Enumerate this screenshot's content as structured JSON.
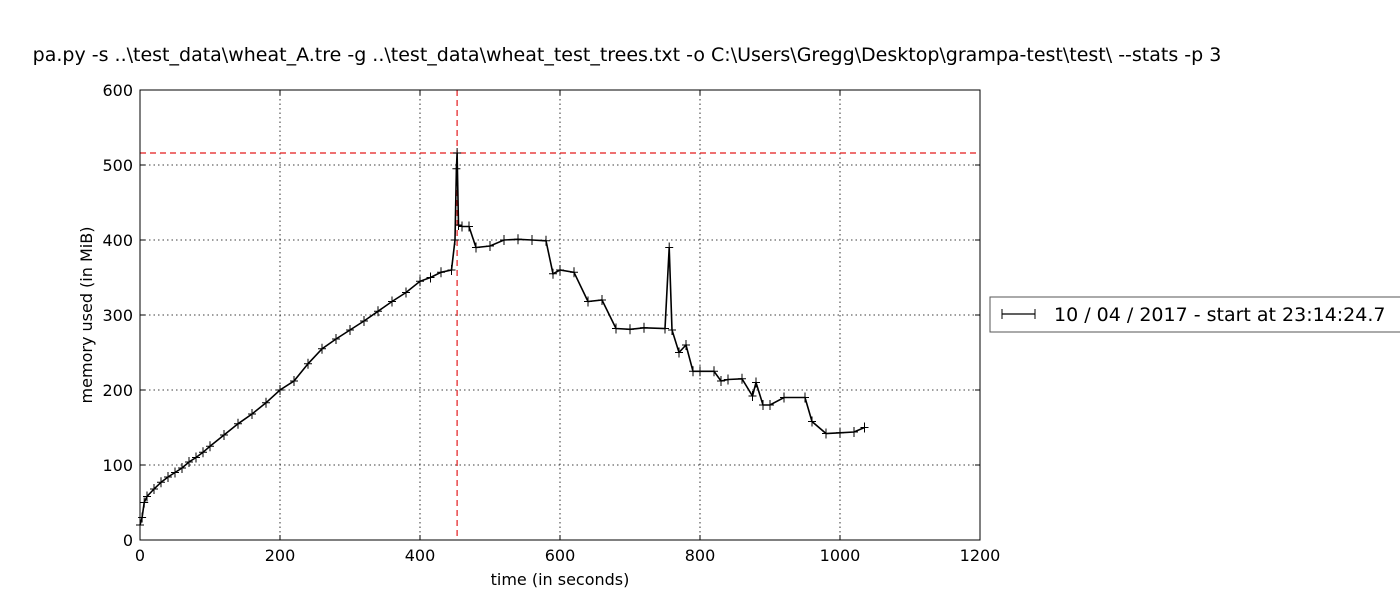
{
  "chart_data": {
    "type": "line",
    "title": "pa.py -s ..\\test_data\\wheat_A.tre -g ..\\test_data\\wheat_test_trees.txt -o C:\\Users\\Gregg\\Desktop\\grampa-test\\test\\ --stats -p 3",
    "xlabel": "time (in seconds)",
    "ylabel": "memory used (in MiB)",
    "xlim": [
      0,
      1200
    ],
    "ylim": [
      0,
      600
    ],
    "xticks": [
      0,
      200,
      400,
      600,
      800,
      1000,
      1200
    ],
    "yticks": [
      0,
      100,
      200,
      300,
      400,
      500,
      600
    ],
    "grid": true,
    "legend_position": "right, outside plot",
    "colors": {
      "series": "#000000",
      "reference_lines": "#e31a1c"
    },
    "reference_lines": {
      "max_memory_y": 516,
      "max_memory_time_x": 453
    },
    "series": [
      {
        "name": "10 / 04 / 2017 - start at 23:14:24.7",
        "x": [
          0,
          3,
          6,
          10,
          20,
          30,
          40,
          50,
          60,
          70,
          80,
          90,
          100,
          120,
          140,
          160,
          180,
          200,
          220,
          240,
          260,
          280,
          300,
          320,
          340,
          360,
          380,
          400,
          415,
          430,
          445,
          450,
          452,
          453,
          455,
          460,
          470,
          480,
          500,
          520,
          540,
          560,
          580,
          590,
          600,
          620,
          640,
          660,
          680,
          700,
          720,
          750,
          756,
          760,
          770,
          780,
          790,
          800,
          820,
          830,
          840,
          860,
          875,
          880,
          890,
          900,
          920,
          950,
          960,
          980,
          1000,
          1020,
          1035
        ],
        "y": [
          20,
          30,
          50,
          58,
          68,
          77,
          84,
          90,
          96,
          104,
          110,
          117,
          125,
          140,
          155,
          168,
          183,
          200,
          212,
          235,
          255,
          268,
          280,
          292,
          305,
          318,
          330,
          345,
          350,
          357,
          360,
          400,
          495,
          516,
          420,
          418,
          418,
          390,
          392,
          400,
          401,
          400,
          399,
          355,
          360,
          357,
          318,
          320,
          282,
          281,
          283,
          282,
          390,
          280,
          250,
          260,
          225,
          225,
          225,
          212,
          214,
          215,
          192,
          210,
          180,
          180,
          190,
          190,
          158,
          142,
          143,
          144,
          150
        ]
      }
    ]
  }
}
